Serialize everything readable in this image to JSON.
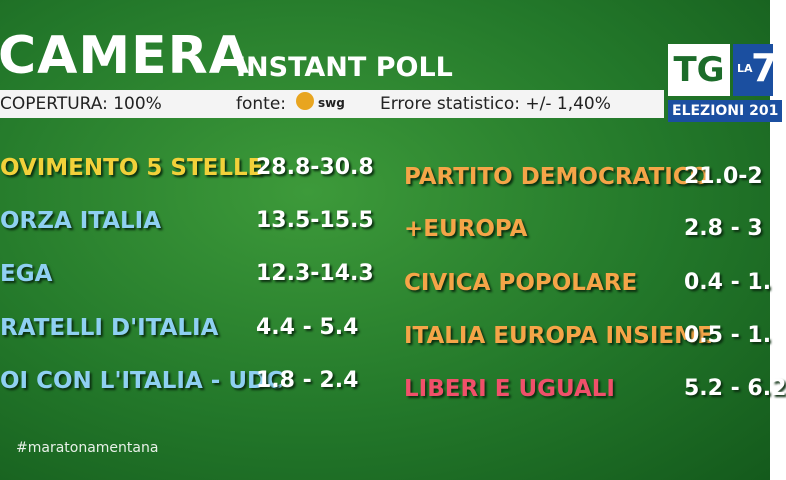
{
  "header": {
    "title": "CAMERA",
    "subtitle": "INSTANT POLL"
  },
  "info_bar": {
    "coverage": "COPERTURA: 100%",
    "source_label": "fonte:",
    "source": "swg",
    "error": "Errore statistico: +/- 1,40%"
  },
  "logo": {
    "tg": "TG",
    "la": "LA",
    "seven": "7",
    "banner": "ELEZIONI 201"
  },
  "left_rows": [
    {
      "party": "OVIMENTO 5 STELLE",
      "range": "28.8-30.8"
    },
    {
      "party": "ORZA ITALIA",
      "range": "13.5-15.5"
    },
    {
      "party": "EGA",
      "range": "12.3-14.3"
    },
    {
      "party": "RATELLI D'ITALIA",
      "range": "4.4 - 5.4"
    },
    {
      "party": "OI CON L'ITALIA - UDC",
      "range": "1.8 - 2.4"
    }
  ],
  "right_rows": [
    {
      "party": "PARTITO DEMOCRATICO",
      "range": "21.0-2"
    },
    {
      "party": "+EUROPA",
      "range": "2.8 - 3"
    },
    {
      "party": "CIVICA POPOLARE",
      "range": "0.4 - 1."
    },
    {
      "party": "ITALIA EUROPA INSIEME",
      "range": "0.5 - 1."
    },
    {
      "party": "LIBERI E UGUALI",
      "range": "5.2 - 6.2"
    }
  ],
  "hashtag": "#maratonamentana"
}
